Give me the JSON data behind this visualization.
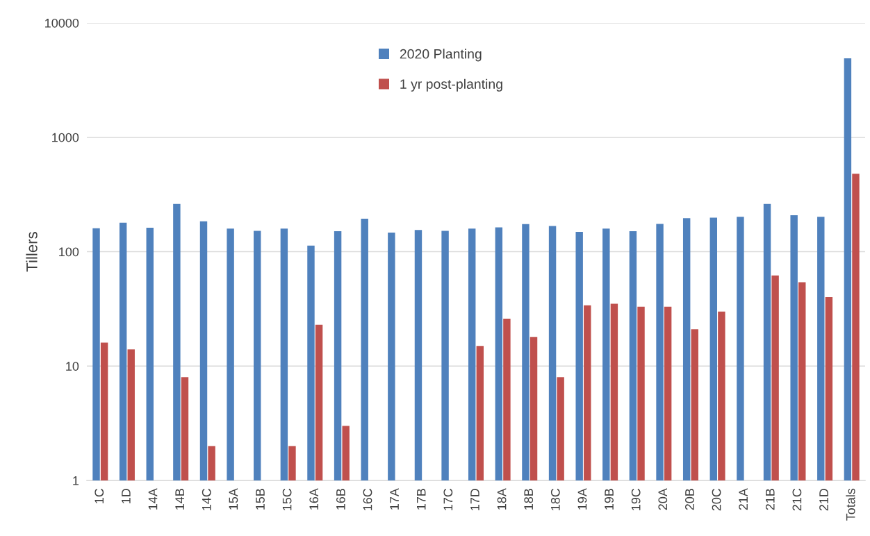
{
  "chart_data": {
    "type": "bar",
    "ylabel": "Tillers",
    "categories": [
      "1C",
      "1D",
      "14A",
      "14B",
      "14C",
      "15A",
      "15B",
      "15C",
      "16A",
      "16B",
      "16C",
      "17A",
      "17B",
      "17C",
      "17D",
      "18A",
      "18B",
      "18C",
      "19A",
      "19B",
      "19C",
      "20A",
      "20B",
      "20C",
      "21A",
      "21B",
      "21C",
      "21D",
      "Totals"
    ],
    "series": [
      {
        "name": "2020 Planting",
        "color": "#4f81bd",
        "values": [
          160,
          179,
          162,
          261,
          184,
          159,
          152,
          159,
          113,
          151,
          194,
          147,
          155,
          152,
          159,
          163,
          174,
          168,
          149,
          159,
          151,
          175,
          196,
          198,
          202,
          261,
          208,
          202,
          4900
        ]
      },
      {
        "name": "1 yr post-planting",
        "color": "#c0504d",
        "values": [
          16,
          14,
          null,
          8,
          2,
          null,
          null,
          2,
          23,
          3,
          null,
          null,
          null,
          null,
          15,
          26,
          18,
          8,
          34,
          35,
          33,
          33,
          21,
          30,
          null,
          62,
          54,
          40,
          480
        ]
      }
    ],
    "log": true,
    "ylim": [
      1,
      10000
    ],
    "yticks": [
      1,
      10,
      100,
      1000,
      10000
    ],
    "grid": "y",
    "legend": "top"
  }
}
